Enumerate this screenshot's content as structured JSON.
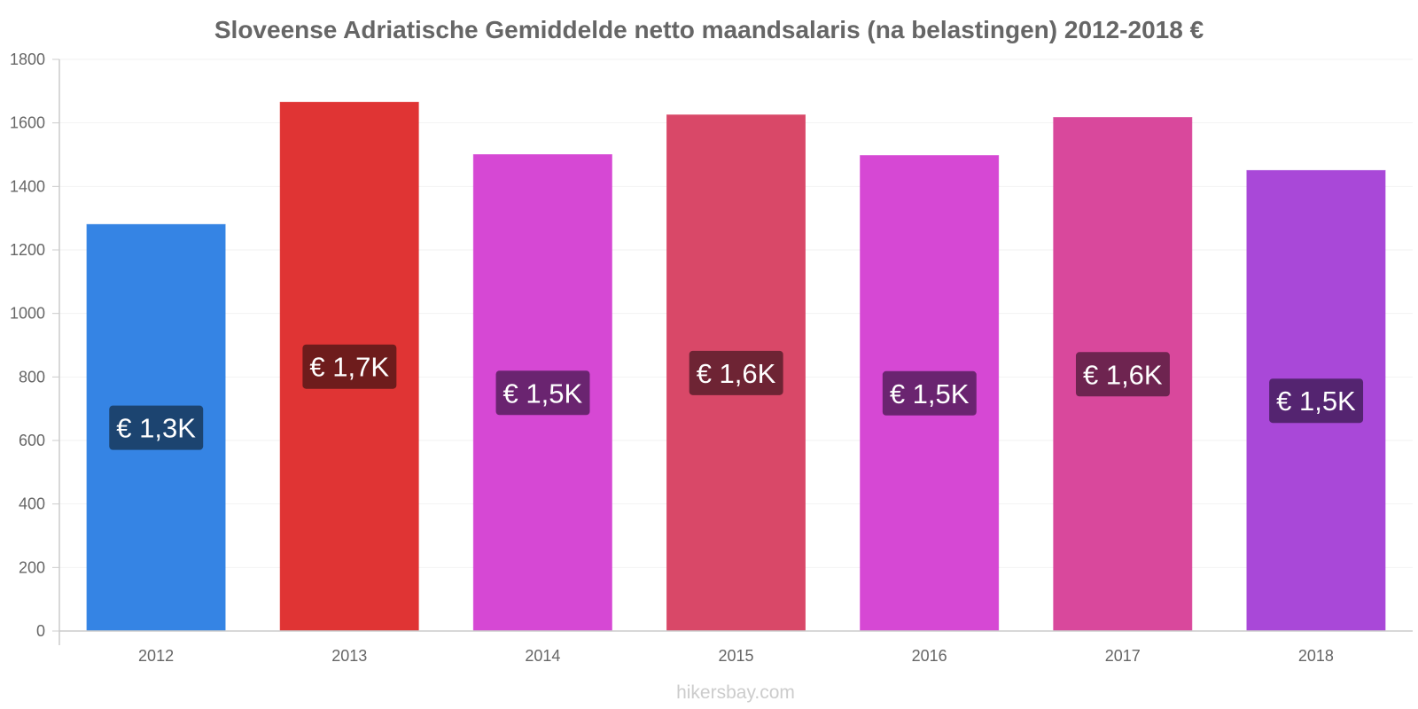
{
  "chart_data": {
    "type": "bar",
    "title": "Sloveense Adriatische Gemiddelde netto maandsalaris (na belastingen) 2012-2018 €",
    "xlabel": "",
    "ylabel": "",
    "categories": [
      "2012",
      "2013",
      "2014",
      "2015",
      "2016",
      "2017",
      "2018"
    ],
    "values": [
      1280,
      1665,
      1500,
      1625,
      1497,
      1617,
      1450
    ],
    "data_labels": [
      "€ 1,3K",
      "€ 1,7K",
      "€ 1,5K",
      "€ 1,6K",
      "€ 1,5K",
      "€ 1,6K",
      "€ 1,5K"
    ],
    "bar_colors": [
      "#3584e4",
      "#e03434",
      "#d648d4",
      "#d94868",
      "#d648d4",
      "#d9489c",
      "#a948d8"
    ],
    "label_bg_colors": [
      "#1c4470",
      "#6e1c1c",
      "#6a2470",
      "#6e2434",
      "#6a2470",
      "#6e2450",
      "#542470"
    ],
    "ylim": [
      0,
      1800
    ],
    "yticks": [
      0,
      200,
      400,
      600,
      800,
      1000,
      1200,
      1400,
      1600,
      1800
    ],
    "grid": true,
    "legend": "none"
  },
  "footer": {
    "watermark": "hikersbay.com"
  }
}
